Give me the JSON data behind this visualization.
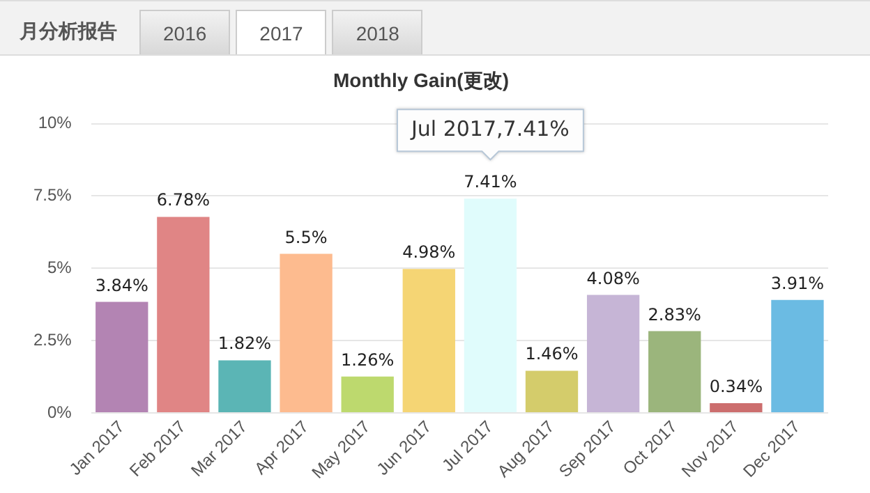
{
  "chart_data": {
    "type": "bar",
    "title": "Monthly Gain(更改)",
    "categories": [
      "Jan 2017",
      "Feb 2017",
      "Mar 2017",
      "Apr 2017",
      "May 2017",
      "Jun 2017",
      "Jul 2017",
      "Aug 2017",
      "Sep 2017",
      "Oct 2017",
      "Nov 2017",
      "Dec 2017"
    ],
    "values": [
      3.84,
      6.78,
      1.82,
      5.5,
      1.26,
      4.98,
      7.41,
      1.46,
      4.08,
      2.83,
      0.34,
      3.91
    ],
    "value_labels": [
      "3.84%",
      "6.78%",
      "1.82%",
      "5.5%",
      "1.26%",
      "4.98%",
      "7.41%",
      "1.46%",
      "4.08%",
      "2.83%",
      "0.34%",
      "3.91%"
    ],
    "colors": [
      "#b384b3",
      "#e08585",
      "#5bb5b5",
      "#fdbb8f",
      "#bdd96e",
      "#f5d574",
      "#e0fcfc",
      "#d4cc6b",
      "#c6b5d6",
      "#9bb57c",
      "#cc6e6e",
      "#6bbbe3"
    ],
    "ylim": [
      0,
      10
    ],
    "yticks": [
      {
        "value": 0,
        "label": "0%"
      },
      {
        "value": 2.5,
        "label": "2.5%"
      },
      {
        "value": 5,
        "label": "5%"
      },
      {
        "value": 7.5,
        "label": "7.5%"
      },
      {
        "value": 10,
        "label": "10%"
      }
    ],
    "grid": "y",
    "legend": false,
    "annotations": [
      "月分析报告",
      "2016",
      "2017",
      "2018",
      {
        "text": "Jul 2017,7.41%",
        "x": "Jul 2017",
        "y": 7.41
      }
    ]
  }
}
